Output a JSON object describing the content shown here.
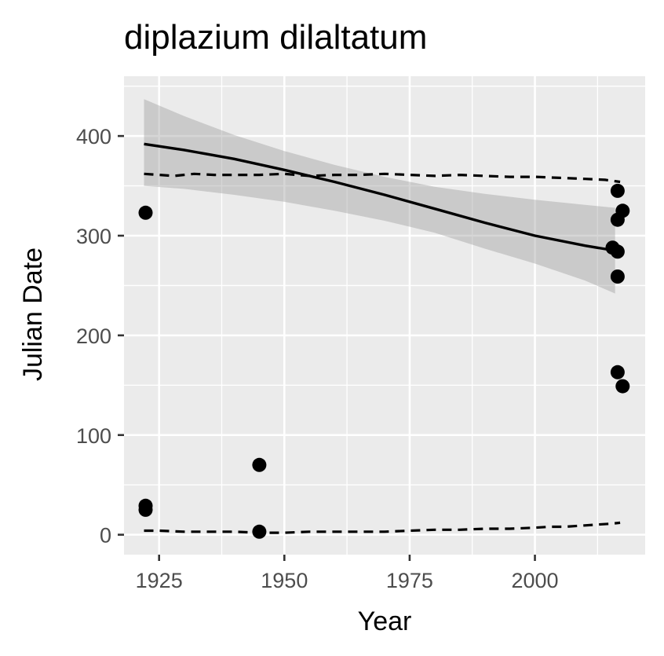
{
  "chart_data": {
    "type": "scatter",
    "title": "diplazium dilaltatum",
    "xlabel": "Year",
    "ylabel": "Julian Date",
    "xlim": [
      1918,
      2022
    ],
    "ylim": [
      -20,
      460
    ],
    "x_ticks": [
      1925,
      1950,
      1975,
      2000
    ],
    "x_tick_labels": [
      "1925",
      "1950",
      "1975",
      "2000"
    ],
    "y_ticks": [
      0,
      100,
      200,
      300,
      400
    ],
    "y_tick_labels": [
      "0",
      "100",
      "200",
      "300",
      "400"
    ],
    "grid": true,
    "background_color": "#ebebeb",
    "points": [
      {
        "x": 1922.3,
        "y": 323
      },
      {
        "x": 1922.3,
        "y": 29
      },
      {
        "x": 1922.3,
        "y": 25
      },
      {
        "x": 1945.0,
        "y": 70
      },
      {
        "x": 1945.0,
        "y": 3
      },
      {
        "x": 2015.5,
        "y": 288
      },
      {
        "x": 2016.5,
        "y": 345
      },
      {
        "x": 2016.5,
        "y": 316
      },
      {
        "x": 2016.5,
        "y": 284
      },
      {
        "x": 2016.5,
        "y": 259
      },
      {
        "x": 2016.5,
        "y": 163
      },
      {
        "x": 2017.5,
        "y": 325
      },
      {
        "x": 2017.5,
        "y": 149
      }
    ],
    "trend": {
      "x": [
        1922,
        1930,
        1940,
        1950,
        1960,
        1970,
        1980,
        1990,
        2000,
        2010,
        2016
      ],
      "y": [
        392,
        386,
        377,
        366,
        354,
        341,
        327,
        313,
        300,
        290,
        285
      ]
    },
    "confidence_band": {
      "x": [
        1922,
        1930,
        1940,
        1950,
        1960,
        1970,
        1980,
        1990,
        2000,
        2010,
        2016
      ],
      "upper": [
        437,
        420,
        401,
        385,
        371,
        359,
        349,
        342,
        336,
        331,
        328
      ],
      "lower": [
        350,
        347,
        341,
        334,
        325,
        315,
        303,
        287,
        272,
        255,
        242
      ]
    },
    "quantile_upper": {
      "x": [
        1922,
        1925,
        1928,
        1932,
        1936,
        1940,
        1945,
        1950,
        1955,
        1960,
        1965,
        1970,
        1975,
        1980,
        1985,
        1990,
        1995,
        2000,
        2005,
        2010,
        2014,
        2017
      ],
      "y": [
        362,
        361,
        360,
        362,
        361,
        361,
        361,
        362,
        360,
        361,
        361,
        362,
        361,
        360,
        361,
        360,
        359,
        359,
        358,
        357,
        356,
        354
      ]
    },
    "quantile_lower": {
      "x": [
        1922,
        1925,
        1930,
        1935,
        1940,
        1945,
        1950,
        1955,
        1960,
        1965,
        1970,
        1975,
        1980,
        1985,
        1990,
        1995,
        2000,
        2003,
        2006,
        2009,
        2012,
        2015,
        2017
      ],
      "y": [
        4,
        4,
        3,
        3,
        3,
        2,
        2,
        3,
        3,
        3,
        3,
        4,
        5,
        5,
        6,
        6,
        7,
        8,
        8,
        9,
        10,
        11,
        12
      ]
    }
  }
}
